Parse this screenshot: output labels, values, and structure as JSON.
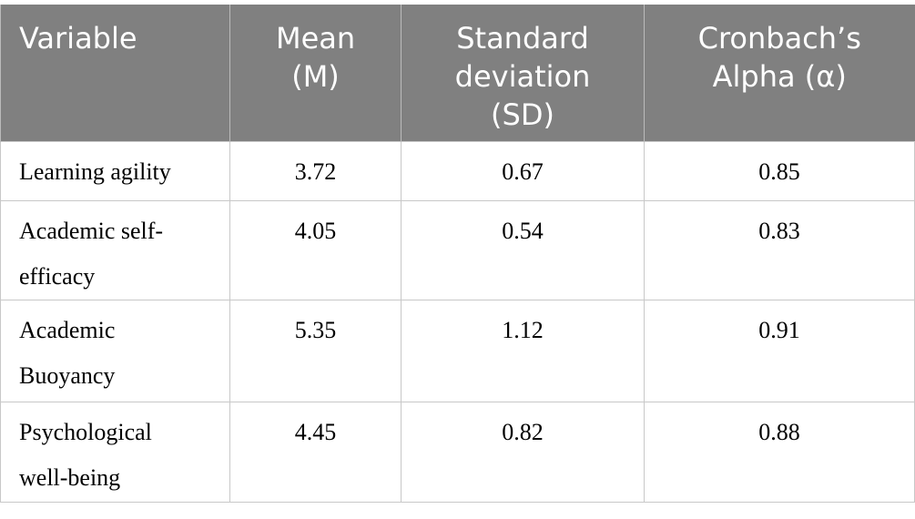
{
  "table": {
    "header": [
      "Variable",
      "Mean (M)",
      "Standard deviation (SD)",
      "Cronbach’s Alpha (α)"
    ],
    "rows": [
      [
        "Learning agility",
        "3.72",
        "0.67",
        "0.85"
      ],
      [
        "Academic self-efficacy",
        "4.05",
        "0.54",
        "0.83"
      ],
      [
        "Academic Buoyancy",
        "5.35",
        "1.12",
        "0.91"
      ],
      [
        "Psychological well-being",
        "4.45",
        "0.82",
        "0.88"
      ]
    ]
  }
}
